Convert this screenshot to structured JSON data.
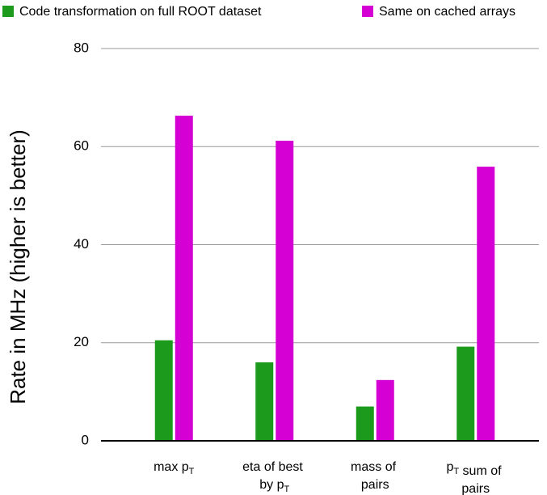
{
  "chart_data": {
    "type": "bar",
    "y_label": "Rate in MHz (higher is better)",
    "categories": [
      "max pT",
      "eta of best by pT",
      "mass of pairs",
      "pT sum of pairs"
    ],
    "series": [
      {
        "name": "Code transformation on full ROOT dataset",
        "color": "#1b9a1b",
        "values": [
          20.5,
          16,
          7,
          19.2
        ]
      },
      {
        "name": "Same on cached arrays",
        "color": "#d400d4",
        "values": [
          66.3,
          61.2,
          12.4,
          55.9
        ]
      }
    ],
    "ylim": [
      0,
      80
    ],
    "yticks": [
      0,
      20,
      40,
      60,
      80
    ],
    "grid": true
  }
}
